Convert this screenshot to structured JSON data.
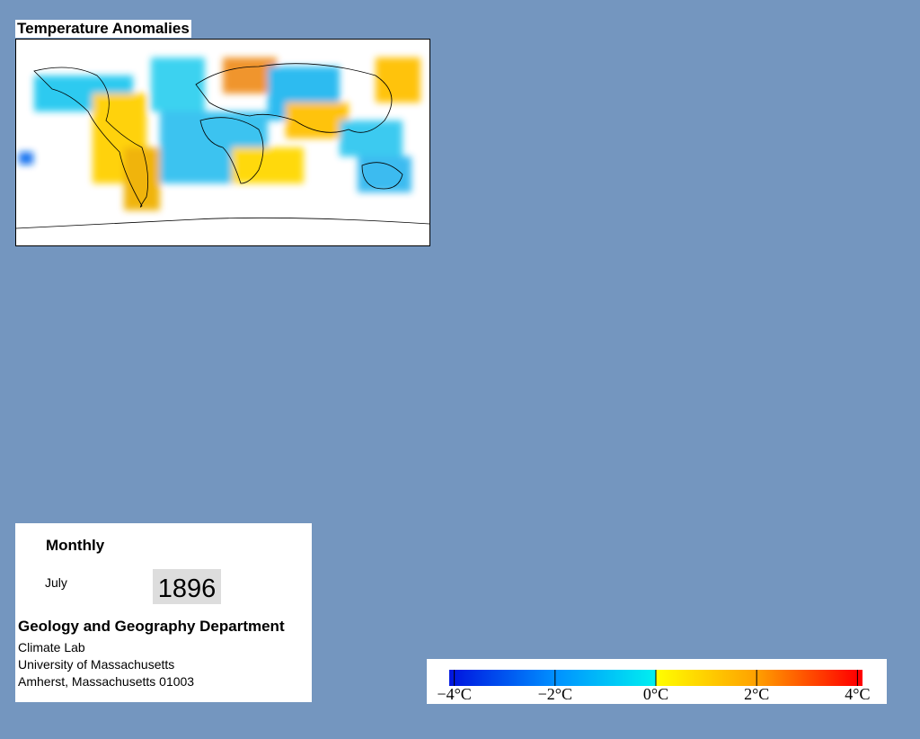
{
  "map": {
    "title": "Temperature Anomalies"
  },
  "info": {
    "period": "Monthly",
    "month": "July",
    "year": "1896",
    "department": "Geology and Geography Department",
    "lines": [
      "Climate Lab",
      "University of Massachusetts",
      "Amherst, Massachusetts 01003"
    ]
  },
  "colorbar": {
    "lim": [
      -4.1,
      4.1
    ],
    "ticks": [
      {
        "value": -4,
        "label": "−4°C"
      },
      {
        "value": -2,
        "label": "−2°C"
      },
      {
        "value": 0,
        "label": "0°C"
      },
      {
        "value": 2,
        "label": "2°C"
      },
      {
        "value": 4,
        "label": "4°C"
      }
    ],
    "colors": [
      "#0018e0",
      "#0090ff",
      "#00f0f0",
      "#ffff00",
      "#ffa000",
      "#ff0000"
    ]
  }
}
